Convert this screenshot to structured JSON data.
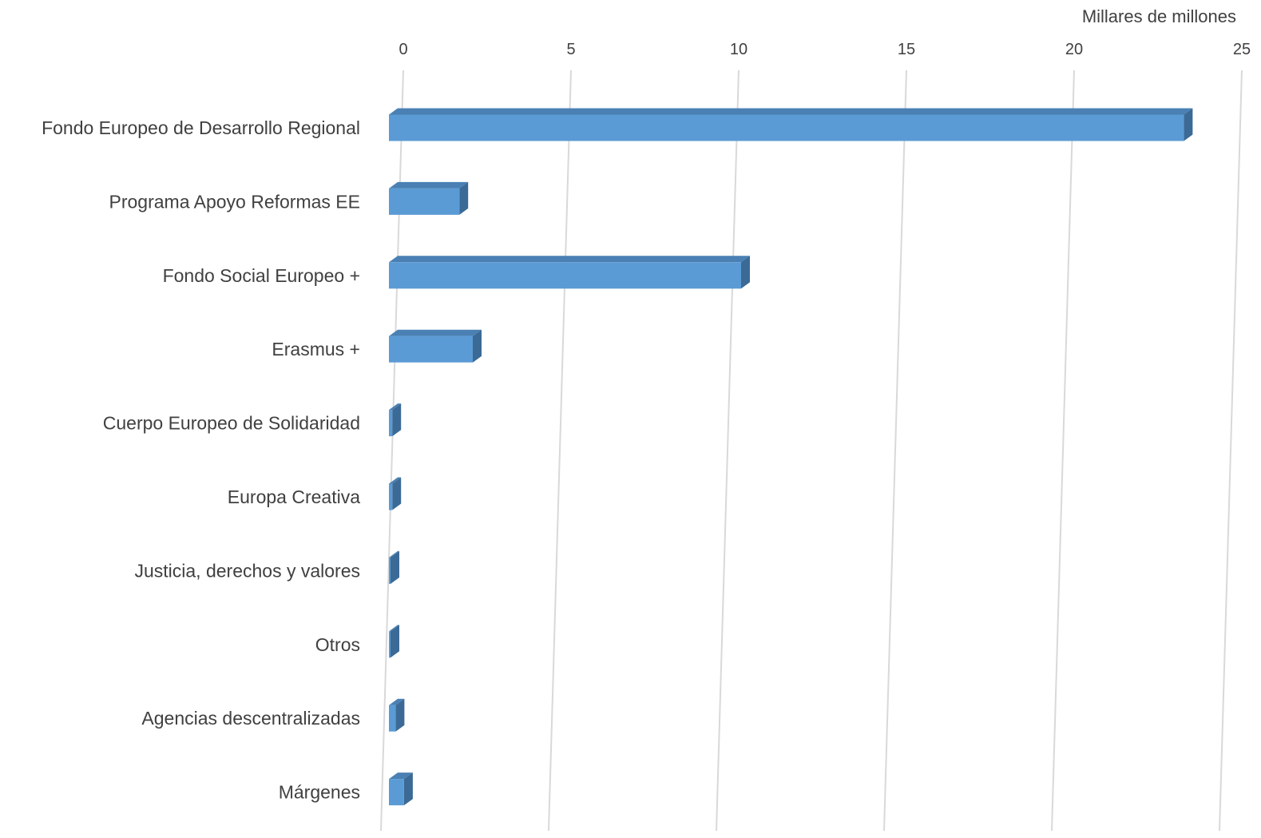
{
  "chart_data": {
    "type": "bar",
    "orientation": "horizontal",
    "style": "3d",
    "unit_label": "Millares de millones",
    "categories": [
      "Fondo Europeo de Desarrollo Regional",
      "Programa Apoyo Reformas EE",
      "Fondo Social Europeo +",
      "Erasmus +",
      "Cuerpo Europeo de Solidaridad",
      "Europa Creativa",
      "Justicia, derechos y valores",
      "Otros",
      "Agencias descentralizadas",
      "Márgenes"
    ],
    "values": [
      23.7,
      2.1,
      10.5,
      2.5,
      0.1,
      0.1,
      0.02,
      0.01,
      0.2,
      0.45
    ],
    "xlim": [
      0,
      25
    ],
    "ticks": [
      0,
      5,
      10,
      15,
      20,
      25
    ],
    "tick_labels": [
      "0",
      "5",
      "10",
      "15",
      "20",
      "25"
    ],
    "grid": true,
    "legend": "none",
    "colors": {
      "bar_front": "#5b9bd5",
      "bar_top": "#4a80b3",
      "bar_side": "#3b6a96",
      "grid": "#d9d9d9",
      "text": "#404040"
    }
  }
}
